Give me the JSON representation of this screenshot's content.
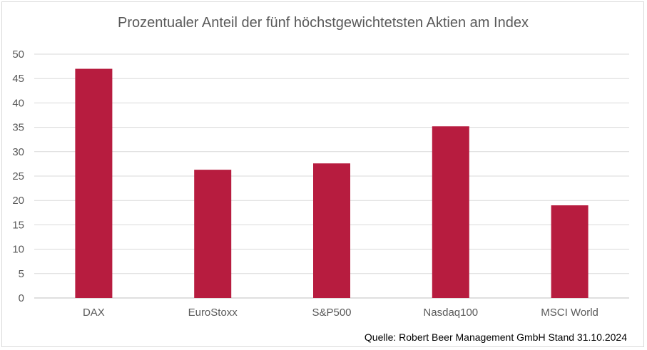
{
  "chart_data": {
    "type": "bar",
    "title": "Prozentualer Anteil der fünf höchstgewichtetsten Aktien am Index",
    "categories": [
      "DAX",
      "EuroStoxx",
      "S&P500",
      "Nasdaq100",
      "MSCI World"
    ],
    "values": [
      47.0,
      26.3,
      27.6,
      35.2,
      19.0
    ],
    "ylim": [
      0,
      50
    ],
    "yticks": [
      "0",
      "5",
      "10",
      "15",
      "20",
      "25",
      "30",
      "35",
      "40",
      "45",
      "50"
    ],
    "grid": true,
    "bar_color": "#b71c3f",
    "source": "Quelle: Robert Beer Management GmbH Stand 31.10.2024"
  }
}
